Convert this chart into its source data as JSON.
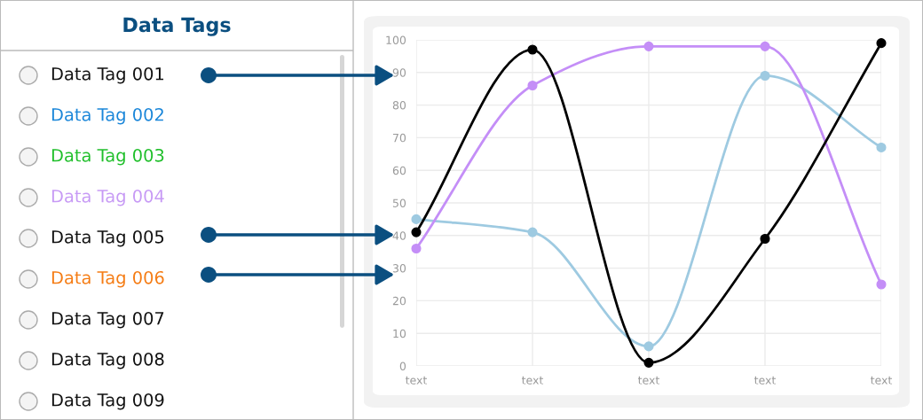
{
  "chart_data": [
    {
      "type": "other",
      "title": "Data Tags",
      "annotations": [
        "Data Tag 001",
        "Data Tag 002",
        "Data Tag 003",
        "Data Tag 004",
        "Data Tag 005",
        "Data Tag 006",
        "Data Tag 007",
        "Data Tag 008",
        "Data Tag 009"
      ],
      "colors": [
        "#111111",
        "#1a86d9",
        "#1fbf2a",
        "#c79af5",
        "#111111",
        "#f57c14",
        "#111111",
        "#111111",
        "#111111"
      ]
    },
    {
      "type": "line",
      "categories": [
        "text",
        "text",
        "text",
        "text",
        "text"
      ],
      "series": [
        {
          "color": "#9ecae1",
          "values": [
            45,
            41,
            6,
            89,
            67
          ]
        },
        {
          "color": "#c48ef7",
          "values": [
            36,
            86,
            98,
            98,
            25
          ]
        },
        {
          "color": "#000000",
          "values": [
            41,
            97,
            1,
            39,
            99
          ]
        }
      ],
      "ylim": [
        0,
        100
      ],
      "yticks": [
        0,
        10,
        20,
        30,
        40,
        50,
        60,
        70,
        80,
        90,
        100
      ],
      "grid": true,
      "marker": "circle",
      "line_style": "solid"
    }
  ]
}
